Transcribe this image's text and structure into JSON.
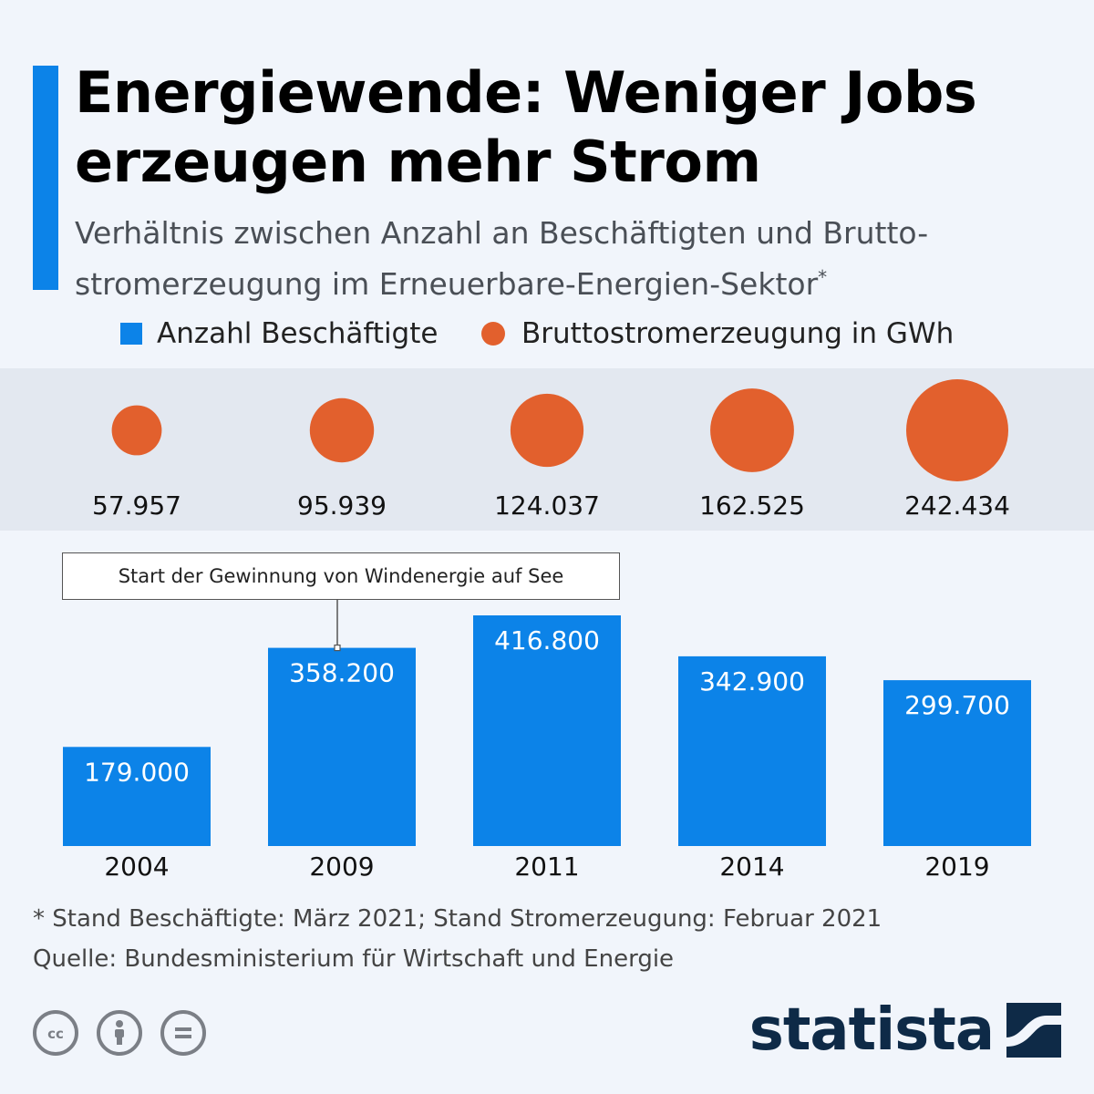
{
  "title": "Energiewende: Weniger Jobs erzeugen mehr Strom",
  "subtitle": "Verhältnis zwischen Anzahl an Beschäftigten und Brutto-stromerzeugung im Erneuerbare-Energien-Sektor",
  "subtitle_mark": "*",
  "legend": {
    "employees": "Anzahl Beschäftigte",
    "generation": "Bruttostromerzeugung in GWh"
  },
  "annotation": "Start der Gewinnung von Windenergie auf See",
  "footnote": "* Stand Beschäftigte: März 2021; Stand Stromerzeugung: Februar 2021",
  "source": "Quelle: Bundesministerium für Wirtschaft und Energie",
  "brand": "statista",
  "colors": {
    "accent": "#0c83e8",
    "bar": "#0c83e8",
    "bubble": "#e2602d",
    "brand": "#0e2a47"
  },
  "icons": [
    "cc-icon",
    "by-icon",
    "nd-icon"
  ],
  "chart_data": {
    "type": "bar",
    "categories": [
      "2004",
      "2009",
      "2011",
      "2014",
      "2019"
    ],
    "series": [
      {
        "name": "Anzahl Beschäftigte",
        "values": [
          179000,
          358200,
          416800,
          342900,
          299700
        ],
        "labels": [
          "179.000",
          "358.200",
          "416.800",
          "342.900",
          "299.700"
        ]
      },
      {
        "name": "Bruttostromerzeugung in GWh",
        "values": [
          57957,
          95939,
          124037,
          162525,
          242434
        ],
        "labels": [
          "57.957",
          "95.939",
          "124.037",
          "162.525",
          "242.434"
        ]
      }
    ],
    "annotation": {
      "category": "2009",
      "text": "Start der Gewinnung von Windenergie auf See"
    },
    "ylim": [
      0,
      416800
    ]
  }
}
